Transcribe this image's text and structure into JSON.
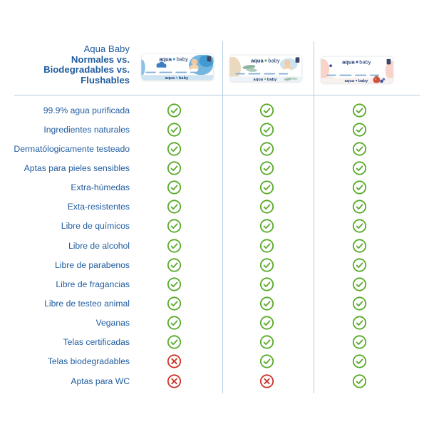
{
  "header": {
    "title_lines": [
      {
        "text": "Aqua Baby",
        "bold": false
      },
      {
        "text": "Normales vs.",
        "bold": true
      },
      {
        "text": "Biodegradables vs.",
        "bold": true
      },
      {
        "text": "Flushables",
        "bold": true
      }
    ],
    "products": [
      {
        "id": "normales",
        "brand_left": "aqua",
        "brand_right": "baby"
      },
      {
        "id": "biodegradables",
        "brand_left": "aqua",
        "brand_right": "baby"
      },
      {
        "id": "flushables",
        "brand_left": "aqua",
        "brand_right": "baby"
      }
    ]
  },
  "table": {
    "rows": [
      {
        "label": "99.9% agua purificada",
        "marks": [
          "check",
          "check",
          "check"
        ]
      },
      {
        "label": "Ingredientes naturales",
        "marks": [
          "check",
          "check",
          "check"
        ]
      },
      {
        "label": "Dermatólogicamente testeado",
        "marks": [
          "check",
          "check",
          "check"
        ]
      },
      {
        "label": "Aptas para pieles sensibles",
        "marks": [
          "check",
          "check",
          "check"
        ]
      },
      {
        "label": "Extra-húmedas",
        "marks": [
          "check",
          "check",
          "check"
        ]
      },
      {
        "label": "Exta-resistentes",
        "marks": [
          "check",
          "check",
          "check"
        ]
      },
      {
        "label": "Libre de químicos",
        "marks": [
          "check",
          "check",
          "check"
        ]
      },
      {
        "label": "Libre de alcohol",
        "marks": [
          "check",
          "check",
          "check"
        ]
      },
      {
        "label": "Libre de parabenos",
        "marks": [
          "check",
          "check",
          "check"
        ]
      },
      {
        "label": "Libre de fragancias",
        "marks": [
          "check",
          "check",
          "check"
        ]
      },
      {
        "label": "Libre de testeo animal",
        "marks": [
          "check",
          "check",
          "check"
        ]
      },
      {
        "label": "Veganas",
        "marks": [
          "check",
          "check",
          "check"
        ]
      },
      {
        "label": "Telas certificadas",
        "marks": [
          "check",
          "check",
          "check"
        ]
      },
      {
        "label": "Telas biodegradables",
        "marks": [
          "cross",
          "check",
          "check"
        ]
      },
      {
        "label": "Aptas para WC",
        "marks": [
          "cross",
          "cross",
          "check"
        ]
      }
    ]
  },
  "colors": {
    "title_blue": "#215d9f",
    "check_green": "#58aa28",
    "cross_red": "#cd3227",
    "divider_blue": "#b3cee3",
    "brand_navy": "#1c3a6e"
  },
  "icons": {
    "check": "check-circle-icon",
    "cross": "cross-circle-icon"
  },
  "chart_data": {
    "type": "table",
    "title": "Aqua Baby Normales vs. Biodegradables vs. Flushables",
    "columns": [
      "Normales",
      "Biodegradables",
      "Flushables"
    ],
    "rows": [
      "99.9% agua purificada",
      "Ingredientes naturales",
      "Dermatólogicamente testeado",
      "Aptas para pieles sensibles",
      "Extra-húmedas",
      "Exta-resistentes",
      "Libre de químicos",
      "Libre de alcohol",
      "Libre de parabenos",
      "Libre de fragancias",
      "Libre de testeo animal",
      "Veganas",
      "Telas certificadas",
      "Telas biodegradables",
      "Aptas para WC"
    ],
    "values": [
      [
        true,
        true,
        true
      ],
      [
        true,
        true,
        true
      ],
      [
        true,
        true,
        true
      ],
      [
        true,
        true,
        true
      ],
      [
        true,
        true,
        true
      ],
      [
        true,
        true,
        true
      ],
      [
        true,
        true,
        true
      ],
      [
        true,
        true,
        true
      ],
      [
        true,
        true,
        true
      ],
      [
        true,
        true,
        true
      ],
      [
        true,
        true,
        true
      ],
      [
        true,
        true,
        true
      ],
      [
        true,
        true,
        true
      ],
      [
        false,
        true,
        true
      ],
      [
        false,
        false,
        true
      ]
    ],
    "legend": "green check = yes, red cross = no",
    "grid": "vertical column separators + header rule"
  }
}
